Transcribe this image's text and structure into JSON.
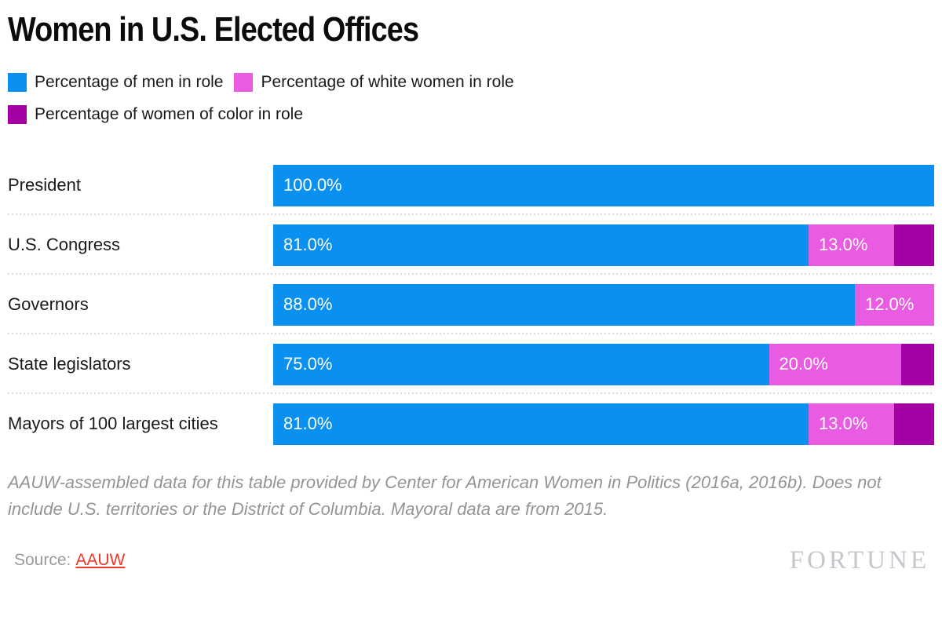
{
  "title": "Women in U.S. Elected Offices",
  "legend": [
    {
      "label": "Percentage of men in role",
      "color": "#0a90f1"
    },
    {
      "label": "Percentage of white women in role",
      "color": "#e95ce2"
    },
    {
      "label": "Percentage of women of color in role",
      "color": "#a400a5"
    }
  ],
  "chart_data": {
    "type": "bar",
    "stacked": true,
    "orientation": "horizontal",
    "xlim": [
      0,
      100
    ],
    "grid": false,
    "legend_position": "top",
    "categories": [
      "President",
      "U.S. Congress",
      "Governors",
      "State legislators",
      "Mayors of 100 largest cities"
    ],
    "series": [
      {
        "name": "Percentage of men in role",
        "color": "#0a90f1",
        "values": [
          100.0,
          81.0,
          88.0,
          75.0,
          81.0
        ]
      },
      {
        "name": "Percentage of white women in role",
        "color": "#e95ce2",
        "values": [
          0.0,
          13.0,
          12.0,
          20.0,
          13.0
        ]
      },
      {
        "name": "Percentage of women of color in role",
        "color": "#a400a5",
        "values": [
          0.0,
          6.0,
          0.0,
          5.0,
          6.0
        ]
      }
    ],
    "bar_labels": [
      [
        "100.0%",
        "",
        ""
      ],
      [
        "81.0%",
        "13.0%",
        ""
      ],
      [
        "88.0%",
        "12.0%",
        ""
      ],
      [
        "75.0%",
        "20.0%",
        ""
      ],
      [
        "81.0%",
        "13.0%",
        ""
      ]
    ]
  },
  "footnote": "AAUW-assembled data for this table provided by Center for American Women in Politics (2016a, 2016b). Does not include U.S. territories or the District of Columbia. Mayoral data are from 2015.",
  "source": {
    "prefix": "Source:",
    "link_label": "AAUW"
  },
  "branding": {
    "logo_text": "FORTUNE"
  },
  "colors": {
    "men": "#0a90f1",
    "white_women": "#e95ce2",
    "women_of_color": "#a400a5",
    "separator": "#dcdcdc",
    "footnote_text": "#949494",
    "source_text": "#9a9a9a",
    "link": "#ee392c",
    "logo": "#c6c7cc"
  }
}
